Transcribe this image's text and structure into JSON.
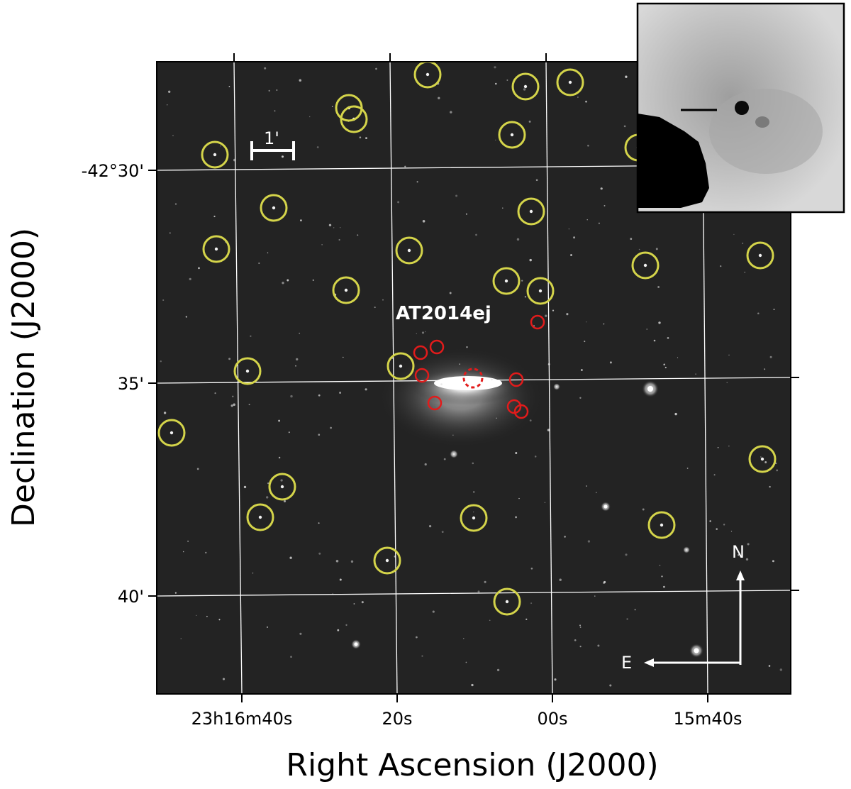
{
  "figure": {
    "x_axis_title": "Right Ascension (J2000)",
    "y_axis_title": "Declination (J2000)",
    "ra_tick_labels": [
      "23h16m40s",
      "20s",
      "00s",
      "15m40s"
    ],
    "dec_tick_labels": [
      "-42°30'",
      "35'",
      "40'"
    ],
    "object_label": "AT2014ej",
    "scale_bar_label": "1'",
    "compass": {
      "north": "N",
      "east": "E"
    },
    "colors": {
      "field_circle": "#d4d44a",
      "candidate_circle": "#e21b1b",
      "sky_background": "#232323",
      "grid": "#ffffff"
    },
    "inset": {
      "description_shown": false
    }
  }
}
